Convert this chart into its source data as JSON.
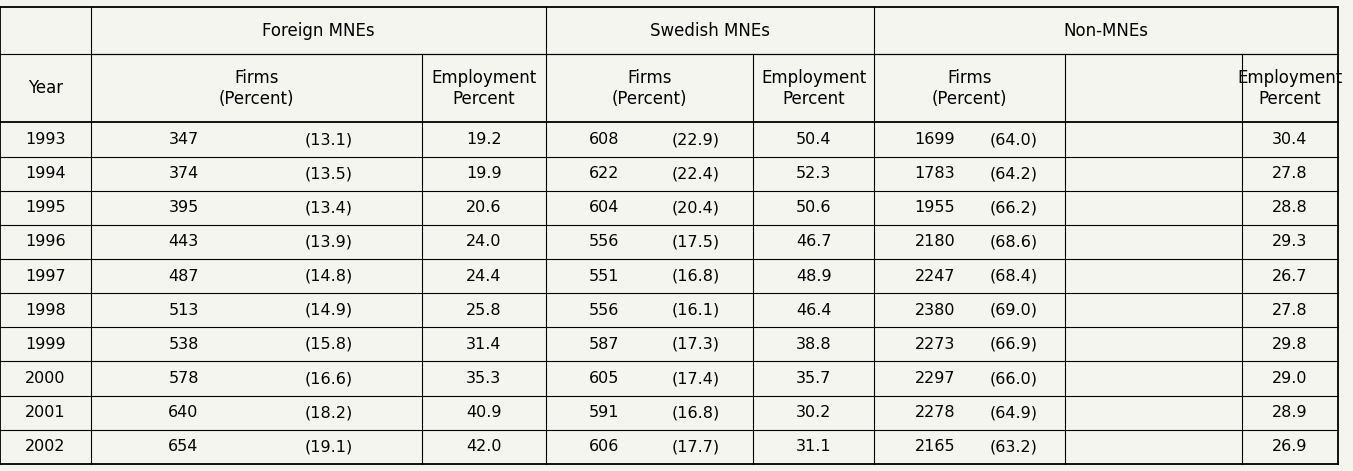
{
  "years": [
    "1993",
    "1994",
    "1995",
    "1996",
    "1997",
    "1998",
    "1999",
    "2000",
    "2001",
    "2002"
  ],
  "foreign_firms": [
    "347",
    "374",
    "395",
    "443",
    "487",
    "513",
    "538",
    "578",
    "640",
    "654"
  ],
  "foreign_firms_pct": [
    "(13.1)",
    "(13.5)",
    "(13.4)",
    "(13.9)",
    "(14.8)",
    "(14.9)",
    "(15.8)",
    "(16.6)",
    "(18.2)",
    "(19.1)"
  ],
  "foreign_emp": [
    "19.2",
    "19.9",
    "20.6",
    "24.0",
    "24.4",
    "25.8",
    "31.4",
    "35.3",
    "40.9",
    "42.0"
  ],
  "swedish_firms": [
    "608",
    "622",
    "604",
    "556",
    "551",
    "556",
    "587",
    "605",
    "591",
    "606"
  ],
  "swedish_firms_pct": [
    "(22.9)",
    "(22.4)",
    "(20.4)",
    "(17.5)",
    "(16.8)",
    "(16.1)",
    "(17.3)",
    "(17.4)",
    "(16.8)",
    "(17.7)"
  ],
  "swedish_emp": [
    "50.4",
    "52.3",
    "50.6",
    "46.7",
    "48.9",
    "46.4",
    "38.8",
    "35.7",
    "30.2",
    "31.1"
  ],
  "non_firms": [
    "1699",
    "1783",
    "1955",
    "2180",
    "2247",
    "2380",
    "2273",
    "2297",
    "2278",
    "2165"
  ],
  "non_firms_pct": [
    "(64.0)",
    "(64.2)",
    "(66.2)",
    "(68.6)",
    "(68.4)",
    "(69.0)",
    "(66.9)",
    "(66.0)",
    "(64.9)",
    "(63.2)"
  ],
  "non_emp": [
    "30.4",
    "27.8",
    "28.8",
    "29.3",
    "26.7",
    "27.8",
    "29.8",
    "29.0",
    "28.9",
    "26.9"
  ],
  "header1": [
    "",
    "Foreign MNEs",
    "",
    "Swedish MNEs",
    "",
    "Non-MNEs",
    ""
  ],
  "header2": [
    "Year",
    "Firms\n(Percent)",
    "Employment\nPercent",
    "Firms\n(Percent)",
    "Employment\nPercent",
    "Firms\n(Percent)",
    "Employment\nPercent"
  ],
  "bg_color": "#f5f5f0",
  "line_color": "#000000",
  "text_color": "#000000",
  "font_size": 11.5,
  "header_font_size": 12
}
